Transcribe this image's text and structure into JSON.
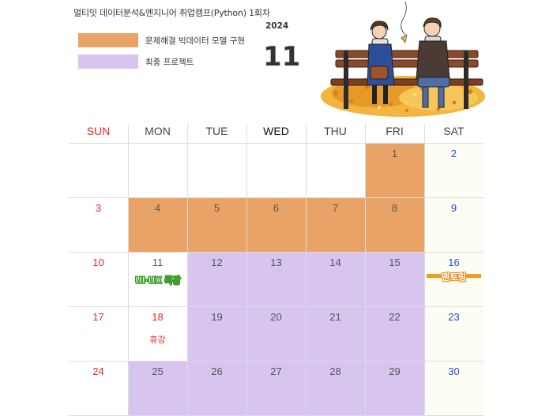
{
  "header": {
    "title": "멀티잇 데이터분석&엔지니어 취업캠프(Python) 1회차",
    "year": "2024",
    "month": "11"
  },
  "legend": [
    {
      "label": "문제해결 빅데이터 모델 구현",
      "color": "#e9a366"
    },
    {
      "label": "최종 프로젝트",
      "color": "#d7c4ef"
    }
  ],
  "colors": {
    "sunday": "#e5262b",
    "saturday": "#1f4fd6",
    "project_orange": "#e9a366",
    "project_purple": "#d7c4ef"
  },
  "weekdays": [
    "SUN",
    "MON",
    "TUE",
    "WED",
    "THU",
    "FRI",
    "SAT"
  ],
  "weeks": [
    [
      {
        "day": ""
      },
      {
        "day": ""
      },
      {
        "day": ""
      },
      {
        "day": ""
      },
      {
        "day": ""
      },
      {
        "day": "1",
        "fill": "orange"
      },
      {
        "day": "2"
      }
    ],
    [
      {
        "day": "3"
      },
      {
        "day": "4",
        "fill": "orange"
      },
      {
        "day": "5",
        "fill": "orange"
      },
      {
        "day": "6",
        "fill": "orange"
      },
      {
        "day": "7",
        "fill": "orange"
      },
      {
        "day": "8",
        "fill": "orange"
      },
      {
        "day": "9"
      }
    ],
    [
      {
        "day": "10"
      },
      {
        "day": "11",
        "note": "UI·UX 특강",
        "note_style": "green"
      },
      {
        "day": "12",
        "fill": "purple"
      },
      {
        "day": "13",
        "fill": "purple"
      },
      {
        "day": "14",
        "fill": "purple"
      },
      {
        "day": "15",
        "fill": "purple"
      },
      {
        "day": "16",
        "note": "멘토링",
        "note_style": "orange"
      }
    ],
    [
      {
        "day": "17"
      },
      {
        "day": "18",
        "note": "휴강",
        "note_style": "red",
        "holiday": true
      },
      {
        "day": "19",
        "fill": "purple"
      },
      {
        "day": "20",
        "fill": "purple"
      },
      {
        "day": "21",
        "fill": "purple"
      },
      {
        "day": "22",
        "fill": "purple"
      },
      {
        "day": "23"
      }
    ],
    [
      {
        "day": "24"
      },
      {
        "day": "25",
        "fill": "purple"
      },
      {
        "day": "26",
        "fill": "purple"
      },
      {
        "day": "27",
        "fill": "purple"
      },
      {
        "day": "28",
        "fill": "purple"
      },
      {
        "day": "29",
        "fill": "purple"
      },
      {
        "day": "30"
      }
    ]
  ]
}
